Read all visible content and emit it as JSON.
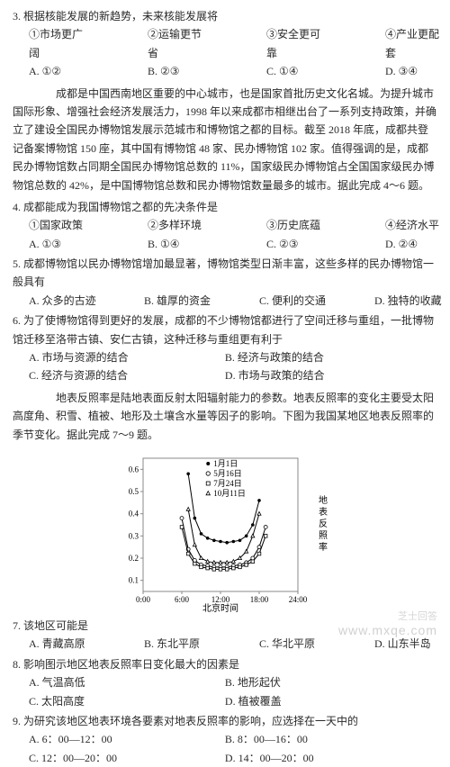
{
  "q3": {
    "stem": "3. 根据核能发展的新趋势，未来核能发展将",
    "items": [
      "①市场更广阔",
      "②运输更节省",
      "③安全更可靠",
      "④产业更配套"
    ],
    "opts": [
      "A. ①②",
      "B. ②③",
      "C. ①④",
      "D. ③④"
    ]
  },
  "passage1": "　　成都是中国西南地区重要的中心城市，也是国家首批历史文化名城。为提升城市国际形象、增强社会经济发展活力，1998 年以来成都市相继出台了一系列支持政策，并确立了建设全国民办博物馆发展示范城市和博物馆之都的目标。截至 2018 年底，成都共登记备案博物馆 150 座，其中国有博物馆 48 家、民办博物馆 102 家。值得强调的是，成都民办博物馆数占同期全国民办博物馆总数的 11%，国家级民办博物馆占全国国家级民办博物馆总数的 42%，是中国博物馆总数和民办博物馆数量最多的城市。据此完成 4～6 题。",
  "q4": {
    "stem": "4. 成都能成为我国博物馆之都的先决条件是",
    "items": [
      "①国家政策",
      "②多样环境",
      "③历史底蕴",
      "④经济水平"
    ],
    "opts": [
      "A. ①③",
      "B. ①④",
      "C. ②③",
      "D. ②④"
    ]
  },
  "q5": {
    "stem": "5. 成都博物馆以民办博物馆增加最显著，博物馆类型日渐丰富，这些多样的民办博物馆一般具有",
    "opts": [
      "A. 众多的古迹",
      "B. 雄厚的资金",
      "C. 便利的交通",
      "D. 独特的收藏"
    ]
  },
  "q6": {
    "stem": "6. 为了使博物馆得到更好的发展，成都的不少博物馆都进行了空间迁移与重组，一批博物馆迁移至洛带古镇、安仁古镇，这种迁移与重组更有利于",
    "opts": [
      "A. 市场与资源的结合",
      "B. 经济与政策的结合",
      "C. 经济与资源的结合",
      "D. 市场与政策的结合"
    ]
  },
  "passage2": "　　地表反照率是陆地表面反射太阳辐射能力的参数。地表反照率的变化主要受太阳高度角、积雪、植被、地形及土壤含水量等因子的影响。下图为我国某地区地表反照率的季节变化。据此完成 7～9 题。",
  "chart": {
    "y_ticks": [
      0.1,
      0.2,
      0.3,
      0.4,
      0.5,
      0.6
    ],
    "x_ticks": [
      "0:00",
      "6:00",
      "12:00",
      "18:00",
      "24:00"
    ],
    "x_label": "北京时间",
    "y_label": "地表反照率",
    "legend": [
      "1月1日",
      "5月16日",
      "7月24日",
      "10月11日"
    ],
    "legend_markers": [
      "●",
      "○",
      "□",
      "△"
    ],
    "series_color": "#000000",
    "bg_color": "#ffffff",
    "grid_color": "#888888",
    "font_size": 9,
    "ylim": [
      0.05,
      0.65
    ],
    "xlim": [
      0,
      24
    ],
    "series": {
      "jan1": [
        [
          7,
          0.58
        ],
        [
          8,
          0.38
        ],
        [
          9,
          0.31
        ],
        [
          10,
          0.29
        ],
        [
          11,
          0.28
        ],
        [
          12,
          0.275
        ],
        [
          13,
          0.27
        ],
        [
          14,
          0.275
        ],
        [
          15,
          0.28
        ],
        [
          16,
          0.3
        ],
        [
          17,
          0.35
        ],
        [
          18,
          0.46
        ]
      ],
      "may16": [
        [
          6,
          0.38
        ],
        [
          7,
          0.24
        ],
        [
          8,
          0.19
        ],
        [
          9,
          0.17
        ],
        [
          10,
          0.165
        ],
        [
          11,
          0.16
        ],
        [
          12,
          0.16
        ],
        [
          13,
          0.16
        ],
        [
          14,
          0.165
        ],
        [
          15,
          0.17
        ],
        [
          16,
          0.18
        ],
        [
          17,
          0.2
        ],
        [
          18,
          0.25
        ],
        [
          19,
          0.34
        ]
      ],
      "jul24": [
        [
          6,
          0.34
        ],
        [
          7,
          0.22
        ],
        [
          8,
          0.175
        ],
        [
          9,
          0.16
        ],
        [
          10,
          0.155
        ],
        [
          11,
          0.15
        ],
        [
          12,
          0.15
        ],
        [
          13,
          0.15
        ],
        [
          14,
          0.155
        ],
        [
          15,
          0.16
        ],
        [
          16,
          0.17
        ],
        [
          17,
          0.185
        ],
        [
          18,
          0.22
        ],
        [
          19,
          0.3
        ]
      ],
      "oct11": [
        [
          7,
          0.42
        ],
        [
          8,
          0.26
        ],
        [
          9,
          0.2
        ],
        [
          10,
          0.185
        ],
        [
          11,
          0.18
        ],
        [
          12,
          0.18
        ],
        [
          13,
          0.18
        ],
        [
          14,
          0.185
        ],
        [
          15,
          0.2
        ],
        [
          16,
          0.23
        ],
        [
          17,
          0.3
        ],
        [
          18,
          0.4
        ]
      ]
    }
  },
  "q7": {
    "stem": "7. 该地区可能是",
    "opts": [
      "A. 青藏高原",
      "B. 东北平原",
      "C. 华北平原",
      "D. 山东半岛"
    ]
  },
  "q8": {
    "stem": "8. 影响图示地区地表反照率日变化最大的因素是",
    "opts": [
      "A. 气温高低",
      "B. 地形起伏",
      "C. 太阳高度",
      "D. 植被覆盖"
    ]
  },
  "q9": {
    "stem": "9. 为研究该地区地表环境各要素对地表反照率的影响，应选择在一天中的",
    "opts": [
      "A. 6：00—12：00",
      "B. 8：00—16：00",
      "C. 12：00—20：00",
      "D. 14：00—20：00"
    ]
  },
  "watermark": {
    "site": "www.mxqe.com",
    "name": "芝士回答"
  }
}
